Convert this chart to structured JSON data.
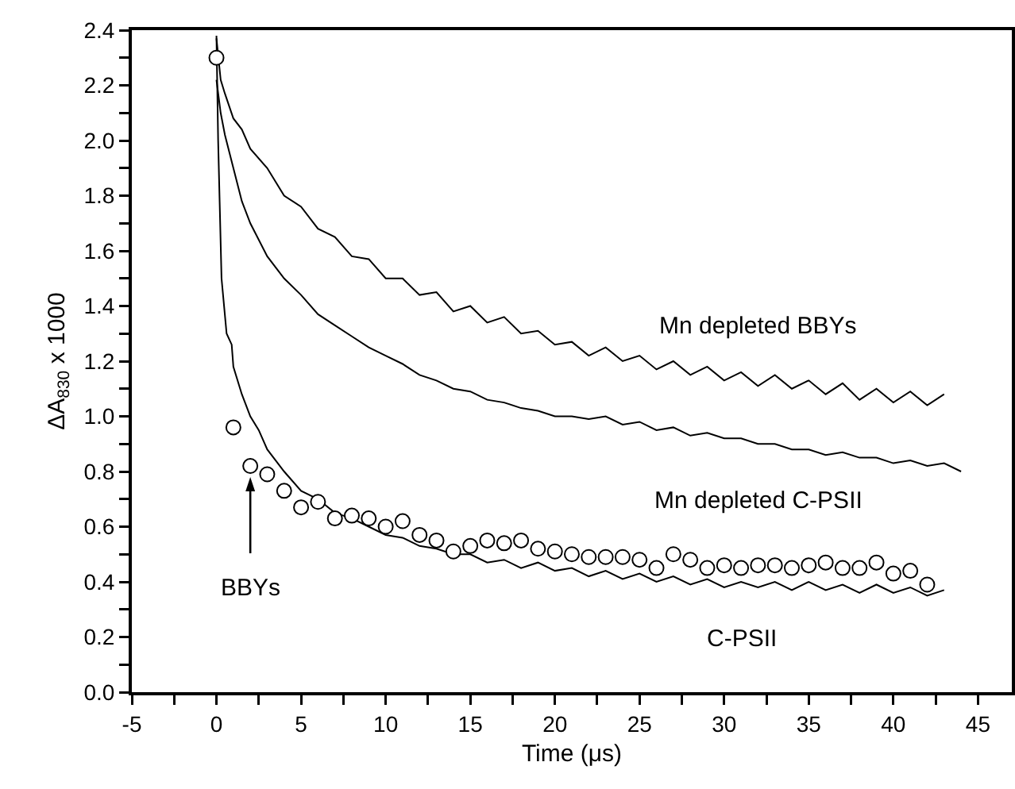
{
  "chart_data": {
    "type": "line",
    "xlabel": "Time (μs)",
    "ylabel": "ΔA$_{830}$ x 1000",
    "xlim": [
      -5,
      47
    ],
    "ylim": [
      0,
      2.4
    ],
    "xticks": [
      -5,
      {
        "value": -2.5,
        "label": null
      },
      0,
      {
        "value": 2.5,
        "label": null
      },
      5,
      {
        "value": 7.5,
        "label": null
      },
      10,
      {
        "value": 12.5,
        "label": null
      },
      15,
      {
        "value": 17.5,
        "label": null
      },
      20,
      {
        "value": 22.5,
        "label": null
      },
      25,
      {
        "value": 27.5,
        "label": null
      },
      30,
      {
        "value": 32.5,
        "label": null
      },
      35,
      {
        "value": 37.5,
        "label": null
      },
      40,
      {
        "value": 42.5,
        "label": null
      },
      45
    ],
    "yticks": [
      {
        "value": 0,
        "label": "0.0"
      },
      {
        "value": 0.1,
        "label": null
      },
      0.2,
      {
        "value": 0.3,
        "label": null
      },
      0.4,
      {
        "value": 0.5,
        "label": null
      },
      0.6,
      {
        "value": 0.7,
        "label": null
      },
      0.8,
      {
        "value": 0.9,
        "label": null
      },
      {
        "value": 1,
        "label": "1.0"
      },
      {
        "value": 1.1,
        "label": null
      },
      1.2,
      {
        "value": 1.3,
        "label": null
      },
      1.4,
      {
        "value": 1.5,
        "label": null
      },
      1.6,
      {
        "value": 1.7,
        "label": null
      },
      1.8,
      {
        "value": 1.9,
        "label": null
      },
      {
        "value": 2,
        "label": "2.0"
      },
      {
        "value": 2.1,
        "label": null
      },
      2.2,
      {
        "value": 2.3,
        "label": null
      },
      2.4
    ],
    "grid": false,
    "legend": false,
    "marker": "none",
    "line_style": "solid",
    "series": [
      {
        "name": "Mn depleted BBYs",
        "color": "#000000",
        "x": [
          0,
          0.25,
          0.5,
          1,
          1.5,
          2,
          3,
          4,
          5,
          6,
          7,
          8,
          9,
          10,
          11,
          12,
          13,
          14,
          15,
          16,
          17,
          18,
          19,
          20,
          21,
          22,
          23,
          24,
          25,
          26,
          27,
          28,
          29,
          30,
          31,
          32,
          33,
          34,
          35,
          36,
          37,
          38,
          39,
          40,
          41,
          42,
          43
        ],
        "values": [
          2.37,
          2.22,
          2.17,
          2.08,
          2.04,
          1.97,
          1.9,
          1.8,
          1.76,
          1.68,
          1.65,
          1.58,
          1.57,
          1.5,
          1.5,
          1.44,
          1.45,
          1.38,
          1.4,
          1.34,
          1.36,
          1.3,
          1.31,
          1.26,
          1.27,
          1.22,
          1.25,
          1.2,
          1.22,
          1.17,
          1.2,
          1.15,
          1.18,
          1.13,
          1.16,
          1.11,
          1.15,
          1.1,
          1.13,
          1.08,
          1.12,
          1.06,
          1.1,
          1.05,
          1.09,
          1.04,
          1.08
        ]
      },
      {
        "name": "Mn depleted C-PSII",
        "color": "#000000",
        "x": [
          0,
          0.25,
          0.5,
          1,
          1.5,
          2,
          3,
          4,
          5,
          6,
          7,
          8,
          9,
          10,
          11,
          12,
          13,
          14,
          15,
          16,
          17,
          18,
          19,
          20,
          21,
          22,
          23,
          24,
          25,
          26,
          27,
          28,
          29,
          30,
          31,
          32,
          33,
          34,
          35,
          36,
          37,
          38,
          39,
          40,
          41,
          42,
          43,
          44
        ],
        "values": [
          2.22,
          2.1,
          2.02,
          1.9,
          1.78,
          1.7,
          1.58,
          1.5,
          1.44,
          1.37,
          1.33,
          1.29,
          1.25,
          1.22,
          1.19,
          1.15,
          1.13,
          1.1,
          1.09,
          1.06,
          1.05,
          1.03,
          1.02,
          1.0,
          1.0,
          0.99,
          1.0,
          0.97,
          0.98,
          0.95,
          0.96,
          0.93,
          0.94,
          0.92,
          0.92,
          0.9,
          0.9,
          0.88,
          0.88,
          0.86,
          0.87,
          0.85,
          0.85,
          0.83,
          0.84,
          0.82,
          0.83,
          0.8
        ]
      },
      {
        "name": "C-PSII",
        "color": "#000000",
        "x": [
          0,
          0.1,
          0.3,
          0.6,
          0.9,
          1,
          1.5,
          2,
          2.5,
          3,
          3.5,
          4,
          5,
          6,
          7,
          8,
          9,
          10,
          11,
          12,
          13,
          14,
          15,
          16,
          17,
          18,
          19,
          20,
          21,
          22,
          23,
          24,
          25,
          26,
          27,
          28,
          29,
          30,
          31,
          32,
          33,
          34,
          35,
          36,
          37,
          38,
          39,
          40,
          41,
          42,
          43
        ],
        "values": [
          2.38,
          2.0,
          1.5,
          1.3,
          1.26,
          1.18,
          1.08,
          1.0,
          0.95,
          0.88,
          0.84,
          0.8,
          0.73,
          0.7,
          0.65,
          0.63,
          0.6,
          0.57,
          0.56,
          0.53,
          0.52,
          0.5,
          0.5,
          0.47,
          0.48,
          0.45,
          0.47,
          0.44,
          0.45,
          0.42,
          0.44,
          0.41,
          0.43,
          0.4,
          0.42,
          0.39,
          0.41,
          0.38,
          0.4,
          0.38,
          0.4,
          0.37,
          0.4,
          0.37,
          0.39,
          0.36,
          0.39,
          0.36,
          0.38,
          0.35,
          0.37
        ]
      },
      {
        "name": "BBYs",
        "type": "scatter",
        "marker": "circle",
        "color": "#000000",
        "x": [
          0,
          1,
          2,
          3,
          4,
          5,
          6,
          7,
          8,
          9,
          10,
          11,
          12,
          13,
          14,
          15,
          16,
          17,
          18,
          19,
          20,
          21,
          22,
          23,
          24,
          25,
          26,
          27,
          28,
          29,
          30,
          31,
          32,
          33,
          34,
          35,
          36,
          37,
          38,
          39,
          40,
          41,
          42
        ],
        "values": [
          2.3,
          0.96,
          0.82,
          0.79,
          0.73,
          0.67,
          0.69,
          0.63,
          0.64,
          0.63,
          0.6,
          0.62,
          0.57,
          0.55,
          0.51,
          0.53,
          0.55,
          0.54,
          0.55,
          0.52,
          0.51,
          0.5,
          0.49,
          0.49,
          0.49,
          0.48,
          0.45,
          0.5,
          0.48,
          0.45,
          0.46,
          0.45,
          0.46,
          0.46,
          0.45,
          0.46,
          0.47,
          0.45,
          0.45,
          0.47,
          0.43,
          0.44,
          0.39
        ]
      }
    ]
  }
}
